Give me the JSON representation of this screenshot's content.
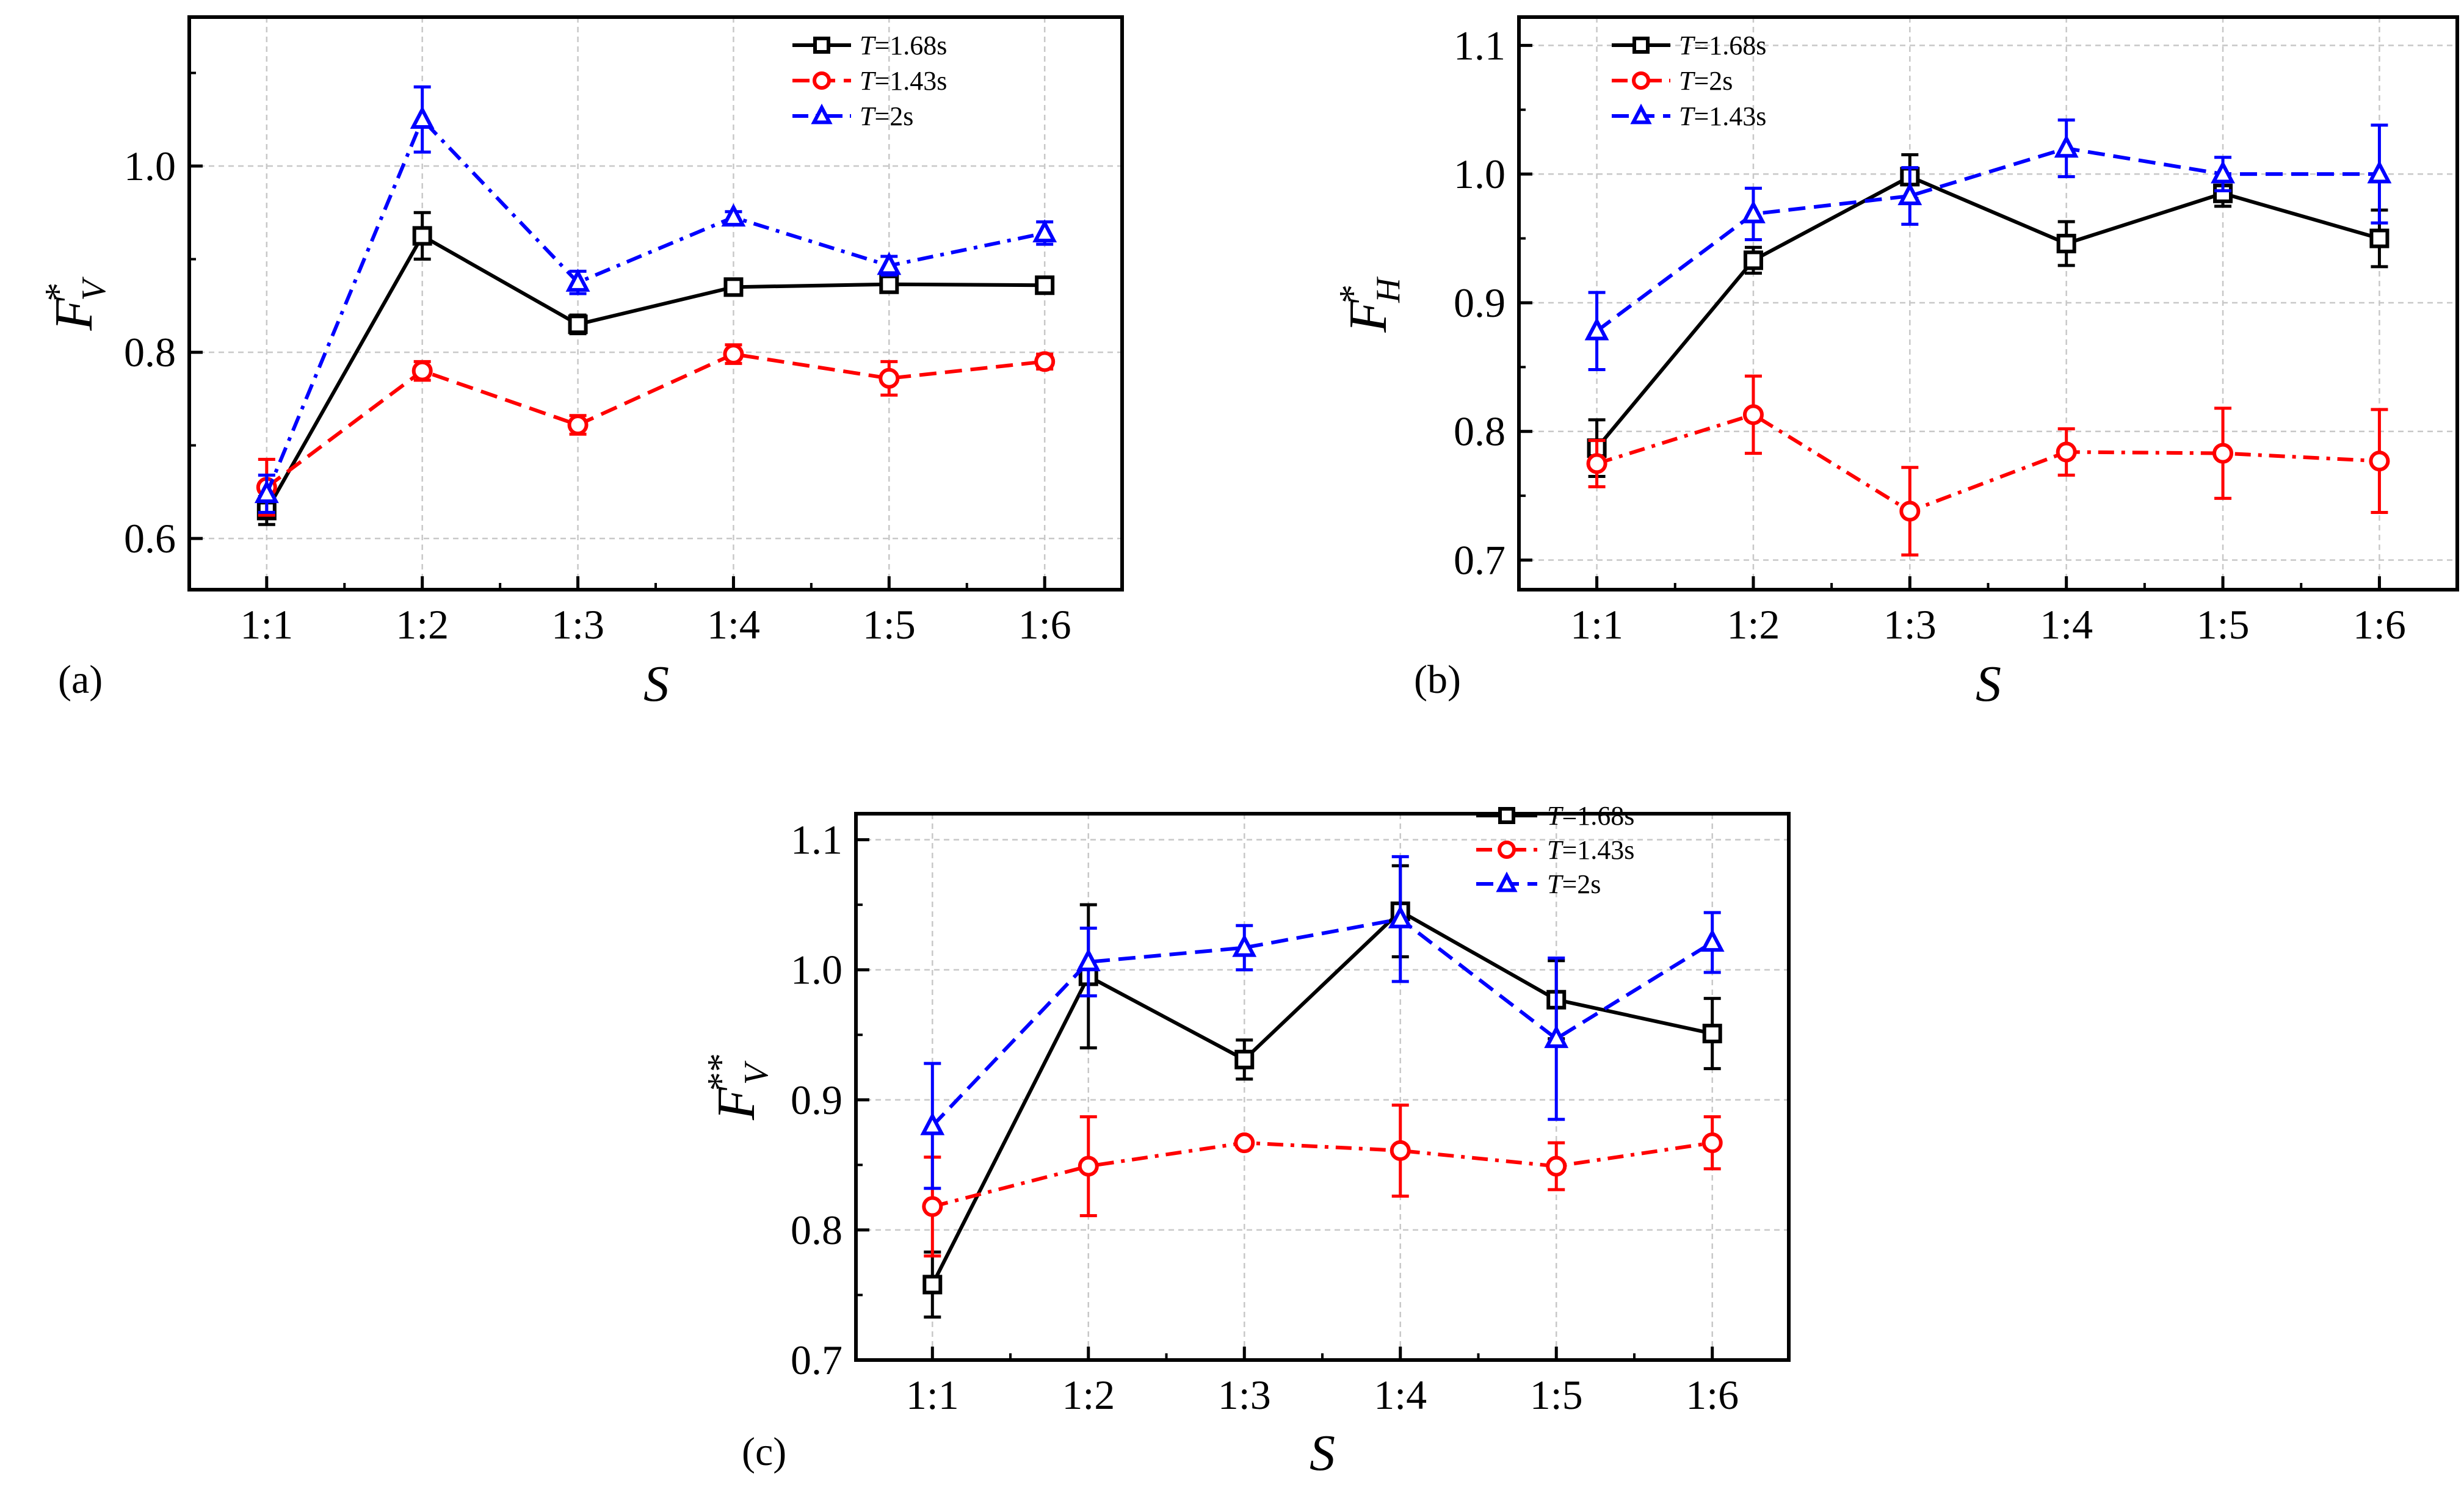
{
  "chart_data": [
    {
      "type": "line",
      "panel_label": "(a)",
      "xlabel": "S",
      "ylabel": {
        "main": "F",
        "sup": "*",
        "sub": "V"
      },
      "categories": [
        "1:1",
        "1:2",
        "1:3",
        "1:4",
        "1:5",
        "1:6"
      ],
      "ylim": [
        0.545,
        1.16
      ],
      "yticks": [
        0.6,
        0.8,
        1.0
      ],
      "ytick_labels": [
        "0.6",
        "0.8",
        "1.0"
      ],
      "legend_position": "top-right",
      "series": [
        {
          "name": "T=1.68s",
          "legend_var": "T",
          "legend_rest": "=1.68s",
          "color": "#000000",
          "marker": "square",
          "dash": "solid",
          "values": [
            0.63,
            0.925,
            0.83,
            0.87,
            0.873,
            0.872
          ],
          "errors": [
            0.015,
            0.025,
            0.01,
            0.005,
            0.005,
            0.005
          ]
        },
        {
          "name": "T=1.43s",
          "legend_var": "T",
          "legend_rest": "=1.43s",
          "color": "#ff0000",
          "marker": "circle",
          "dash": "dash",
          "values": [
            0.655,
            0.78,
            0.722,
            0.798,
            0.772,
            0.79
          ],
          "errors": [
            0.03,
            0.01,
            0.01,
            0.01,
            0.018,
            0.008
          ]
        },
        {
          "name": "T=2s",
          "legend_var": "T",
          "legend_rest": "=2s",
          "color": "#0000ff",
          "marker": "triangle",
          "dash": "dashdot",
          "values": [
            0.648,
            1.05,
            0.875,
            0.945,
            0.893,
            0.928
          ],
          "errors": [
            0.02,
            0.035,
            0.012,
            0.006,
            0.01,
            0.012
          ]
        }
      ]
    },
    {
      "type": "line",
      "panel_label": "(b)",
      "xlabel": "S",
      "ylabel": {
        "main": "F",
        "sup": "*",
        "sub": "H"
      },
      "categories": [
        "1:1",
        "1:2",
        "1:3",
        "1:4",
        "1:5",
        "1:6"
      ],
      "ylim": [
        0.677,
        1.122
      ],
      "yticks": [
        0.7,
        0.8,
        0.9,
        1.0,
        1.1
      ],
      "ytick_labels": [
        "0.7",
        "0.8",
        "0.9",
        "1.0",
        "1.1"
      ],
      "legend_position": "top-left",
      "series": [
        {
          "name": "T=1.68s",
          "legend_var": "T",
          "legend_rest": "=1.68s",
          "color": "#000000",
          "marker": "square",
          "dash": "solid",
          "values": [
            0.787,
            0.933,
            0.998,
            0.946,
            0.985,
            0.95
          ],
          "errors": [
            0.022,
            0.01,
            0.017,
            0.017,
            0.01,
            0.022
          ]
        },
        {
          "name": "T=2s",
          "legend_var": "T",
          "legend_rest": "=2s",
          "color": "#ff0000",
          "marker": "circle",
          "dash": "dashdot",
          "values": [
            0.775,
            0.813,
            0.738,
            0.784,
            0.783,
            0.777
          ],
          "errors": [
            0.018,
            0.03,
            0.034,
            0.018,
            0.035,
            0.04
          ]
        },
        {
          "name": "T=1.43s",
          "legend_var": "T",
          "legend_rest": "=1.43s",
          "color": "#0000ff",
          "marker": "triangle",
          "dash": "dash",
          "values": [
            0.878,
            0.969,
            0.983,
            1.02,
            1.0,
            1.0
          ],
          "errors": [
            0.03,
            0.02,
            0.022,
            0.022,
            0.013,
            0.038
          ]
        }
      ]
    },
    {
      "type": "line",
      "panel_label": "(c)",
      "xlabel": "S",
      "ylabel": {
        "main": "F",
        "sup": "**",
        "sub": "V"
      },
      "categories": [
        "1:1",
        "1:2",
        "1:3",
        "1:4",
        "1:5",
        "1:6"
      ],
      "ylim": [
        0.7,
        1.12
      ],
      "yticks": [
        0.7,
        0.8,
        0.9,
        1.0,
        1.1
      ],
      "ytick_labels": [
        "0.7",
        "0.8",
        "0.9",
        "1.0",
        "1.1"
      ],
      "legend_position": "top-right",
      "series": [
        {
          "name": "T=1.68s",
          "legend_var": "T",
          "legend_rest": "=1.68s",
          "color": "#000000",
          "marker": "square",
          "dash": "solid",
          "values": [
            0.758,
            0.995,
            0.931,
            1.045,
            0.977,
            0.951
          ],
          "errors": [
            0.025,
            0.055,
            0.015,
            0.035,
            0.03,
            0.027
          ]
        },
        {
          "name": "T=1.43s",
          "legend_var": "T",
          "legend_rest": "=1.43s",
          "color": "#ff0000",
          "marker": "circle",
          "dash": "dashdot",
          "values": [
            0.818,
            0.849,
            0.867,
            0.861,
            0.849,
            0.867
          ],
          "errors": [
            0.038,
            0.038,
            0.003,
            0.035,
            0.018,
            0.02
          ]
        },
        {
          "name": "T=2s",
          "legend_var": "T",
          "legend_rest": "=2s",
          "color": "#0000ff",
          "marker": "triangle",
          "dash": "dash",
          "values": [
            0.88,
            1.006,
            1.017,
            1.039,
            0.947,
            1.021
          ],
          "errors": [
            0.048,
            0.026,
            0.017,
            0.048,
            0.062,
            0.023
          ]
        }
      ]
    }
  ]
}
